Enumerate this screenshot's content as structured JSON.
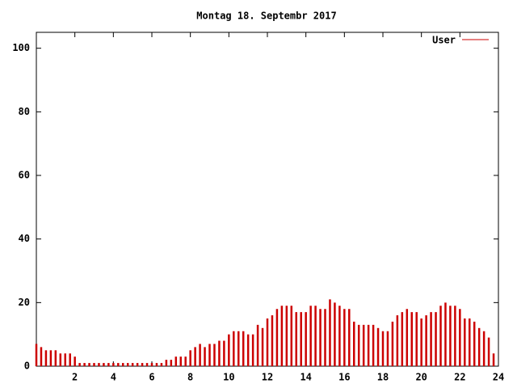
{
  "chart_data": {
    "type": "impulses",
    "title": "Montag 18. Septembr 2017",
    "x": [
      0,
      0.25,
      0.5,
      0.75,
      1,
      1.25,
      1.5,
      1.75,
      2,
      2.25,
      2.5,
      2.75,
      3,
      3.25,
      3.5,
      3.75,
      4,
      4.25,
      4.5,
      4.75,
      5,
      5.25,
      5.5,
      5.75,
      6,
      6.25,
      6.5,
      6.75,
      7,
      7.25,
      7.5,
      7.75,
      8,
      8.25,
      8.5,
      8.75,
      9,
      9.25,
      9.5,
      9.75,
      10,
      10.25,
      10.5,
      10.75,
      11,
      11.25,
      11.5,
      11.75,
      12,
      12.25,
      12.5,
      12.75,
      13,
      13.25,
      13.5,
      13.75,
      14,
      14.25,
      14.5,
      14.75,
      15,
      15.25,
      15.5,
      15.75,
      16,
      16.25,
      16.5,
      16.75,
      17,
      17.25,
      17.5,
      17.75,
      18,
      18.25,
      18.5,
      18.75,
      19,
      19.25,
      19.5,
      19.75,
      20,
      20.25,
      20.5,
      20.75,
      21,
      21.25,
      21.5,
      21.75,
      22,
      22.25,
      22.5,
      22.75,
      23,
      23.25,
      23.5,
      23.75
    ],
    "series": [
      {
        "name": "User",
        "color": "#cc0000",
        "values": [
          7,
          6,
          5,
          5,
          5,
          4,
          4,
          4,
          3,
          1,
          1,
          1,
          1,
          1,
          1,
          1,
          1,
          1,
          1,
          1,
          1,
          1,
          1,
          1,
          1,
          1,
          1,
          2,
          2,
          3,
          3,
          3,
          5,
          6,
          7,
          6,
          7,
          7,
          8,
          8,
          10,
          11,
          11,
          11,
          10,
          10,
          13,
          12,
          15,
          16,
          18,
          19,
          19,
          19,
          17,
          17,
          17,
          19,
          19,
          18,
          18,
          21,
          20,
          19,
          18,
          18,
          14,
          13,
          13,
          13,
          13,
          12,
          11,
          11,
          14,
          16,
          17,
          18,
          17,
          17,
          15,
          16,
          17,
          17,
          19,
          20,
          19,
          19,
          18,
          15,
          15,
          14,
          12,
          11,
          9,
          4
        ]
      }
    ],
    "xlim": [
      0,
      24
    ],
    "ylim": [
      0,
      105
    ],
    "xticks": [
      2,
      4,
      6,
      8,
      10,
      12,
      14,
      16,
      18,
      20,
      22,
      24
    ],
    "yticks": [
      0,
      20,
      40,
      60,
      80,
      100
    ]
  }
}
